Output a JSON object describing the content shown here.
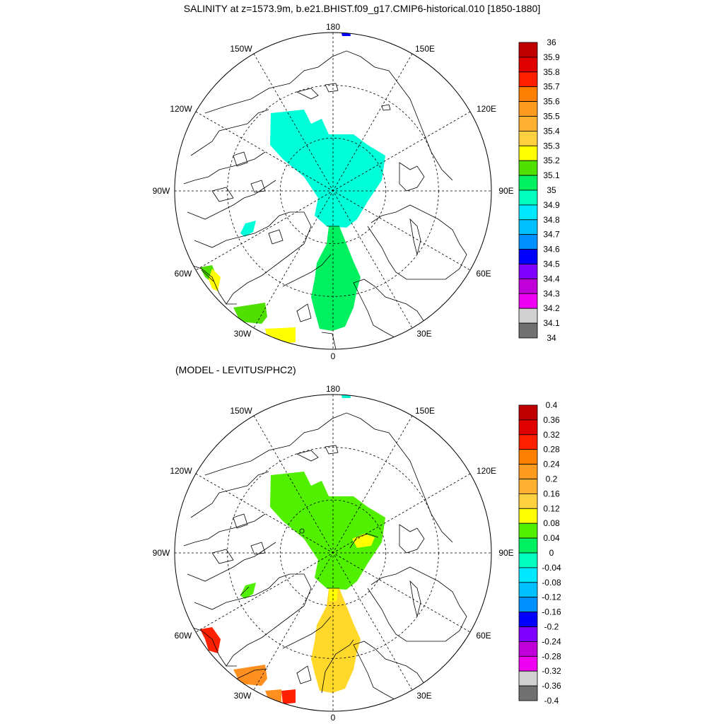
{
  "title": "SALINITY at z=1573.9m, b.e21.BHIST.f09_g17.CMIP6-historical.010 [1850-1880]",
  "subtitle": "(MODEL - LEVITUS/PHC2)",
  "lon_labels": {
    "deg180": "180",
    "w150": "150W",
    "e150": "150E",
    "w120": "120W",
    "e120": "120E",
    "w90": "90W",
    "e90": "90E",
    "w60": "60W",
    "e60": "60E",
    "w30": "30W",
    "e30": "30E",
    "deg0": "0"
  },
  "colorbar_top": {
    "labels": [
      "36",
      "35.9",
      "35.8",
      "35.7",
      "35.6",
      "35.5",
      "35.4",
      "35.3",
      "35.2",
      "35.1",
      "35",
      "34.9",
      "34.8",
      "34.7",
      "34.6",
      "34.5",
      "34.4",
      "34.3",
      "34.2",
      "34.1",
      "34"
    ],
    "colors": [
      "#c00000",
      "#e00000",
      "#ff2000",
      "#ff8000",
      "#ff9a20",
      "#ffb030",
      "#ffd040",
      "#ffff00",
      "#50e000",
      "#00f060",
      "#00ffc0",
      "#00e8ff",
      "#00c0ff",
      "#0090ff",
      "#0000ff",
      "#8000ff",
      "#c000d8",
      "#f000f0",
      "#d0d0d0",
      "#707070"
    ]
  },
  "colorbar_bottom": {
    "labels": [
      "0.4",
      "0.36",
      "0.32",
      "0.28",
      "0.24",
      "0.2",
      "0.16",
      "0.12",
      "0.08",
      "0.04",
      "0",
      "-0.04",
      "-0.08",
      "-0.12",
      "-0.16",
      "-0.2",
      "-0.24",
      "-0.28",
      "-0.32",
      "-0.36",
      "-0.4"
    ],
    "colors": [
      "#c00000",
      "#e00000",
      "#ff2000",
      "#ff8000",
      "#ff9a20",
      "#ffb030",
      "#ffd040",
      "#ffff00",
      "#50f000",
      "#00f060",
      "#00ffc0",
      "#00e8ff",
      "#00c0ff",
      "#0090ff",
      "#0000ff",
      "#8000ff",
      "#c000d8",
      "#f000f0",
      "#d0d0d0",
      "#707070"
    ]
  },
  "colors": {
    "top_arctic": "#00ffd8",
    "top_atlantic": "#00f060",
    "bottom_arctic": "#50f000",
    "bottom_atlantic": "#ffd82a",
    "bottom_labrador": "#ff2000",
    "bottom_irminger": "#ff9020"
  }
}
